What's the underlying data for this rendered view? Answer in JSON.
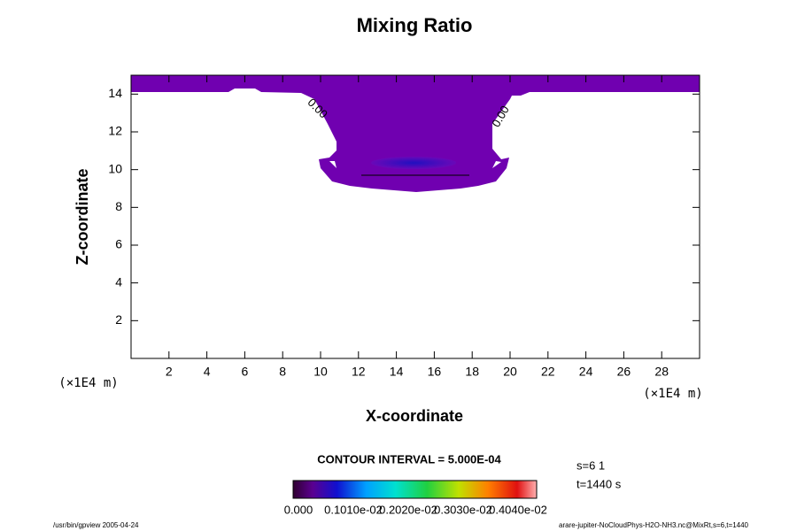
{
  "chart_data": {
    "type": "contour",
    "title": "Mixing Ratio",
    "x_label": "X-coordinate",
    "y_label": "Z-coordinate",
    "x_unit": "(×1E4 m)",
    "y_unit": "(×1E4 m)",
    "xlim": [
      0,
      30
    ],
    "ylim": [
      0,
      15
    ],
    "xticks": [
      2,
      4,
      6,
      8,
      10,
      12,
      14,
      16,
      18,
      20,
      22,
      24,
      26,
      28
    ],
    "yticks": [
      2,
      4,
      6,
      8,
      10,
      12,
      14
    ],
    "contour_labels": [
      "0.00",
      "0.00"
    ],
    "contour_interval": "CONTOUR INTERVAL = 5.000E-04",
    "colorbar_labels": [
      "0.000",
      "0.1010e-02",
      "0.2020e-02",
      "0.3030e-02",
      "0.4040e-02"
    ],
    "info": [
      "s=6 1",
      "t=1440 s"
    ],
    "footer_left": "/usr/bin/gpview 2005-04-24",
    "footer_right": "arare-jupiter-NoCloudPhys-H2O-NH3.nc@MixRt,s=6,t=1440"
  }
}
